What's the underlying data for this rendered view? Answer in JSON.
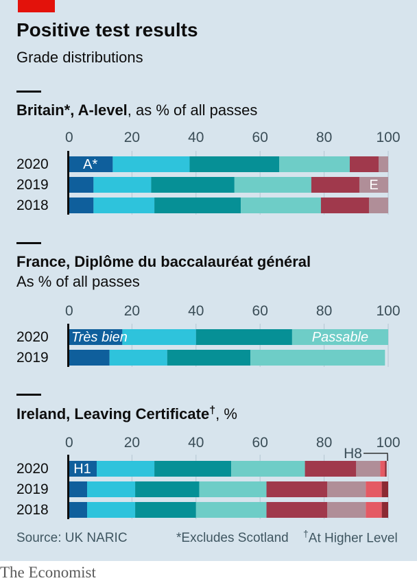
{
  "header": {
    "title": "Positive test results",
    "subtitle": "Grade distributions"
  },
  "colors": {
    "background": "#d7e4ed",
    "brand_red": "#e3120b",
    "grades": [
      "#0f5f9c",
      "#2ec3dc",
      "#069096",
      "#6ecdc7",
      "#a0394c",
      "#b08e98",
      "#e45a64",
      "#8b2a33"
    ]
  },
  "chart_data": [
    {
      "type": "bar",
      "orientation": "horizontal-stacked",
      "title_bold": "Britain*, A-level",
      "title_rest": ", as % of all passes",
      "subtitle": "",
      "xlim": [
        0,
        100
      ],
      "xticks": [
        "0",
        "20",
        "40",
        "60",
        "80",
        "100"
      ],
      "categories": [
        "2020",
        "2019",
        "2018"
      ],
      "series": [
        {
          "name": "A*",
          "values": [
            14,
            8,
            8
          ]
        },
        {
          "name": "",
          "values": [
            24,
            18,
            19
          ]
        },
        {
          "name": "",
          "values": [
            28,
            26,
            27
          ]
        },
        {
          "name": "",
          "values": [
            22,
            24,
            25
          ]
        },
        {
          "name": "",
          "values": [
            9,
            15,
            15
          ]
        },
        {
          "name": "E",
          "values": [
            3,
            9,
            6
          ]
        }
      ],
      "segment_colors": [
        "#0f5f9c",
        "#2ec3dc",
        "#069096",
        "#6ecdc7",
        "#a0394c",
        "#b08e98"
      ],
      "labels": [
        {
          "text": "A*",
          "row": 0,
          "segment": 0
        },
        {
          "text": "E",
          "row": 1,
          "segment": 5
        }
      ]
    },
    {
      "type": "bar",
      "orientation": "horizontal-stacked",
      "title_bold": "France, Diplôme du baccalauréat général",
      "title_rest": "",
      "subtitle": "As % of all passes",
      "xlim": [
        0,
        100
      ],
      "xticks": [
        "0",
        "20",
        "40",
        "60",
        "80",
        "100"
      ],
      "categories": [
        "2020",
        "2019"
      ],
      "series": [
        {
          "name": "Très bien",
          "values": [
            0,
            13
          ]
        },
        {
          "name": "",
          "values": [
            0,
            18
          ]
        },
        {
          "name": "",
          "values": [
            0,
            26
          ]
        },
        {
          "name": "Passable",
          "values": [
            0,
            42
          ]
        }
      ],
      "series_2020": [
        17,
        23,
        30,
        30
      ],
      "segment_colors": [
        "#0f5f9c",
        "#2ec3dc",
        "#069096",
        "#6ecdc7"
      ],
      "labels": [
        {
          "text": "Très bien",
          "row": 0,
          "segment": 0
        },
        {
          "text": "Passable",
          "row": 0,
          "segment": 3
        }
      ]
    },
    {
      "type": "bar",
      "orientation": "horizontal-stacked",
      "title_bold": "Ireland, Leaving Certificate",
      "title_mark": "†",
      "title_rest": ", %",
      "subtitle": "",
      "xlim": [
        0,
        100
      ],
      "xticks": [
        "0",
        "20",
        "40",
        "60",
        "80",
        "100"
      ],
      "categories": [
        "2020",
        "2019",
        "2018"
      ],
      "series": [
        {
          "name": "H1",
          "values": [
            9,
            6,
            6
          ]
        },
        {
          "name": "",
          "values": [
            18,
            15,
            15
          ]
        },
        {
          "name": "",
          "values": [
            24,
            20,
            19
          ]
        },
        {
          "name": "",
          "values": [
            23,
            21,
            22
          ]
        },
        {
          "name": "",
          "values": [
            16,
            19,
            19
          ]
        },
        {
          "name": "",
          "values": [
            7.5,
            12,
            12
          ]
        },
        {
          "name": "",
          "values": [
            1.5,
            5,
            5
          ]
        },
        {
          "name": "H8",
          "values": [
            0.5,
            2,
            2
          ]
        }
      ],
      "segment_colors": [
        "#0f5f9c",
        "#2ec3dc",
        "#069096",
        "#6ecdc7",
        "#a0394c",
        "#b08e98",
        "#e45a64",
        "#8b2a33"
      ],
      "labels": [
        {
          "text": "H1",
          "row": 0,
          "segment": 0
        },
        {
          "text": "H8",
          "row": 0,
          "segment": 7
        }
      ]
    }
  ],
  "footer": {
    "source": "Source: UK NARIC",
    "note1": "*Excludes Scotland",
    "note2_mark": "†",
    "note2": "At Higher Level",
    "logo": "The Economist"
  }
}
